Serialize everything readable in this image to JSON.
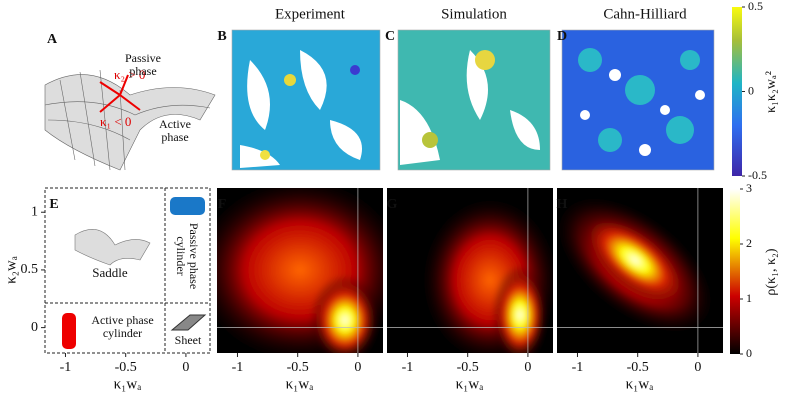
{
  "panel_labels": [
    "A",
    "B",
    "C",
    "D",
    "E",
    "F",
    "G",
    "H"
  ],
  "titles": [
    "Experiment",
    "Simulation",
    "Cahn-Hilliard"
  ],
  "saddle": {
    "passive": "Passive phase",
    "active": "Active phase",
    "k2": "κ₂ > 0",
    "k1": "κ₁ < 0"
  },
  "legend_e": {
    "saddle": "Saddle",
    "passive_cylinder": "Passive phase cylinder",
    "active_cylinder": "Active phase cylinder",
    "sheet": "Sheet"
  },
  "colorbar_top": {
    "label": "κ₁κ₂wₐ²",
    "lim": [
      -0.5,
      0.5
    ],
    "ticks": [
      0.5,
      0,
      -0.5
    ]
  },
  "colorbar_bottom": {
    "label": "ρ(κ₁, κ₂)",
    "lim": [
      0,
      3
    ],
    "ticks": [
      3,
      2,
      1,
      0
    ]
  },
  "axes": {
    "xlabel": "κ₁wₐ",
    "ylabel": "κ₂wₐ",
    "xlim": [
      -1.17,
      0.2
    ],
    "ylim": [
      -0.22,
      1.21
    ],
    "xticks": [
      -1,
      -0.5,
      0
    ],
    "yticks": [
      1,
      0.5,
      0
    ]
  }
}
